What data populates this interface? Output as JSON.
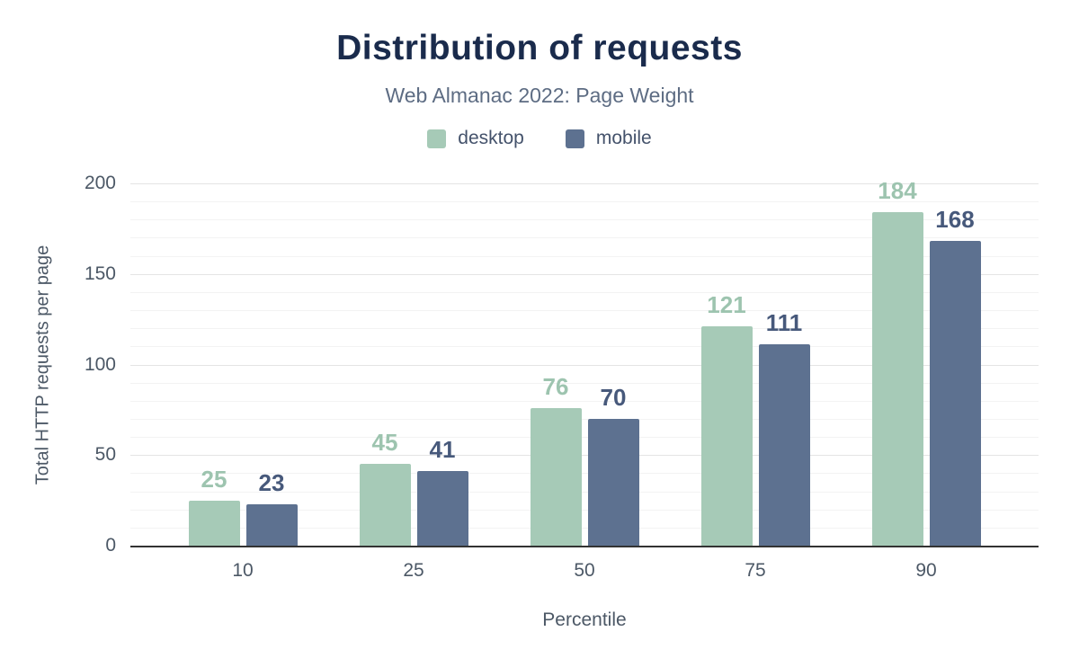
{
  "chart_data": {
    "type": "bar",
    "title": "Distribution of requests",
    "subtitle": "Web Almanac 2022: Page Weight",
    "categories": [
      "10",
      "25",
      "50",
      "75",
      "90"
    ],
    "series": [
      {
        "name": "desktop",
        "values": [
          25,
          45,
          76,
          121,
          184
        ],
        "color": "#a6cab7",
        "label_color": "#9dc4af"
      },
      {
        "name": "mobile",
        "values": [
          23,
          41,
          70,
          111,
          168
        ],
        "color": "#5d7190",
        "label_color": "#47597b"
      }
    ],
    "xlabel": "Percentile",
    "ylabel": "Total HTTP requests per page",
    "ylim": [
      0,
      200
    ],
    "yticks": [
      0,
      50,
      100,
      150,
      200
    ],
    "minor_grid_step": 10,
    "major_grid_step": 50,
    "grid": true,
    "legend_position": "top"
  },
  "colors": {
    "background": "#ffffff",
    "title": "#1a2b4c",
    "subtitle": "#5d6c83",
    "axis_text": "#4c5866",
    "baseline": "#333333",
    "grid_minor": "#f3f3f3",
    "grid_major": "#e4e4e4"
  }
}
